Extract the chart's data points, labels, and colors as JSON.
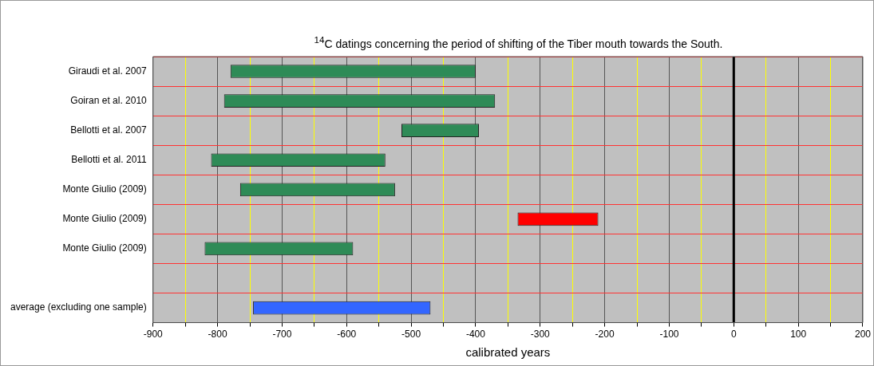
{
  "chart_data": {
    "type": "bar",
    "orientation": "horizontal",
    "title": "$^{14}$C datings concerning the period of shifting of the Tiber mouth towards the South.",
    "xlabel": "calibrated years",
    "categories": [
      "Giraudi et al. 2007",
      "Goiran et al. 2010",
      "Bellotti et al. 2007",
      "Bellotti et al. 2011",
      "Monte Giulio (2009)",
      "Monte Giulio (2009)",
      "Monte Giulio (2009)",
      null,
      "average (excluding one sample)"
    ],
    "base": [
      -780,
      -790,
      -515,
      -810,
      -765,
      -335,
      -820,
      null,
      -745
    ],
    "values": [
      380,
      420,
      120,
      270,
      240,
      125,
      230,
      null,
      275
    ],
    "colors": [
      "#2e8b57",
      "#2e8b57",
      "#2e8b57",
      "#2e8b57",
      "#2e8b57",
      "#ff0000",
      "#2e8b57",
      "#2e8b57",
      "#3366ff"
    ],
    "xlim": [
      -900,
      200
    ],
    "xticks": [
      -900,
      {
        "value": -850,
        "label": null
      },
      -800,
      {
        "value": -750,
        "label": null
      },
      -700,
      {
        "value": -650,
        "label": null
      },
      -600,
      {
        "value": -550,
        "label": null
      },
      -500,
      {
        "value": -450,
        "label": null
      },
      -400,
      {
        "value": -350,
        "label": null
      },
      -300,
      {
        "value": -250,
        "label": null
      },
      -200,
      {
        "value": -150,
        "label": null
      },
      -100,
      {
        "value": -50,
        "label": null
      },
      0,
      {
        "value": 50,
        "label": null
      },
      100,
      {
        "value": 150,
        "label": null
      },
      200
    ],
    "ref_lines": [
      {
        "axis": "x",
        "value": 0,
        "color": "#000000"
      }
    ],
    "grid": true,
    "legend": false
  }
}
